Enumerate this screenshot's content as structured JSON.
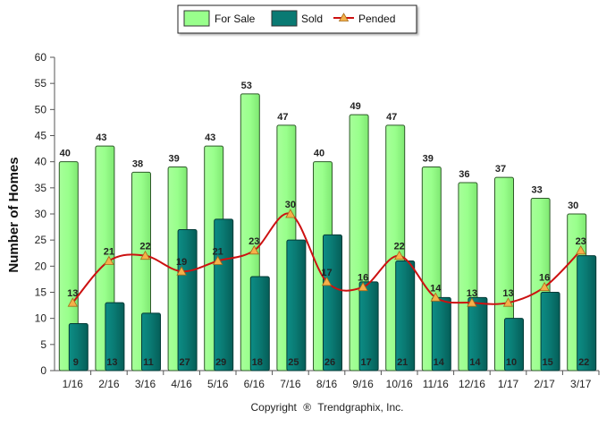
{
  "chart_data": {
    "type": "bar",
    "categories": [
      "1/16",
      "2/16",
      "3/16",
      "4/16",
      "5/16",
      "6/16",
      "7/16",
      "8/16",
      "9/16",
      "10/16",
      "11/16",
      "12/16",
      "1/17",
      "2/17",
      "3/17"
    ],
    "series": [
      {
        "name": "For Sale",
        "type": "bar",
        "color": "#99ff8c",
        "values": [
          40,
          43,
          38,
          39,
          43,
          53,
          47,
          40,
          49,
          47,
          39,
          36,
          37,
          33,
          30
        ]
      },
      {
        "name": "Sold",
        "type": "bar",
        "color": "#0a7a73",
        "values": [
          9,
          13,
          11,
          27,
          29,
          18,
          25,
          26,
          17,
          21,
          14,
          14,
          10,
          15,
          22
        ]
      },
      {
        "name": "Pended",
        "type": "line",
        "color": "#cc1111",
        "marker_color": "#f5b04a",
        "values": [
          13,
          21,
          22,
          19,
          21,
          23,
          30,
          17,
          16,
          22,
          14,
          13,
          13,
          16,
          23
        ]
      }
    ],
    "ylabel": "Number of Homes",
    "xlabel": "",
    "ylim": [
      0,
      60
    ],
    "yticks": [
      0,
      5,
      10,
      15,
      20,
      25,
      30,
      35,
      40,
      45,
      50,
      55,
      60
    ],
    "legend_position": "top-center",
    "grid": false
  },
  "footer": {
    "copyright": "Copyright",
    "copyright_symbol": "®",
    "brand": "Trendgraphix, Inc."
  }
}
